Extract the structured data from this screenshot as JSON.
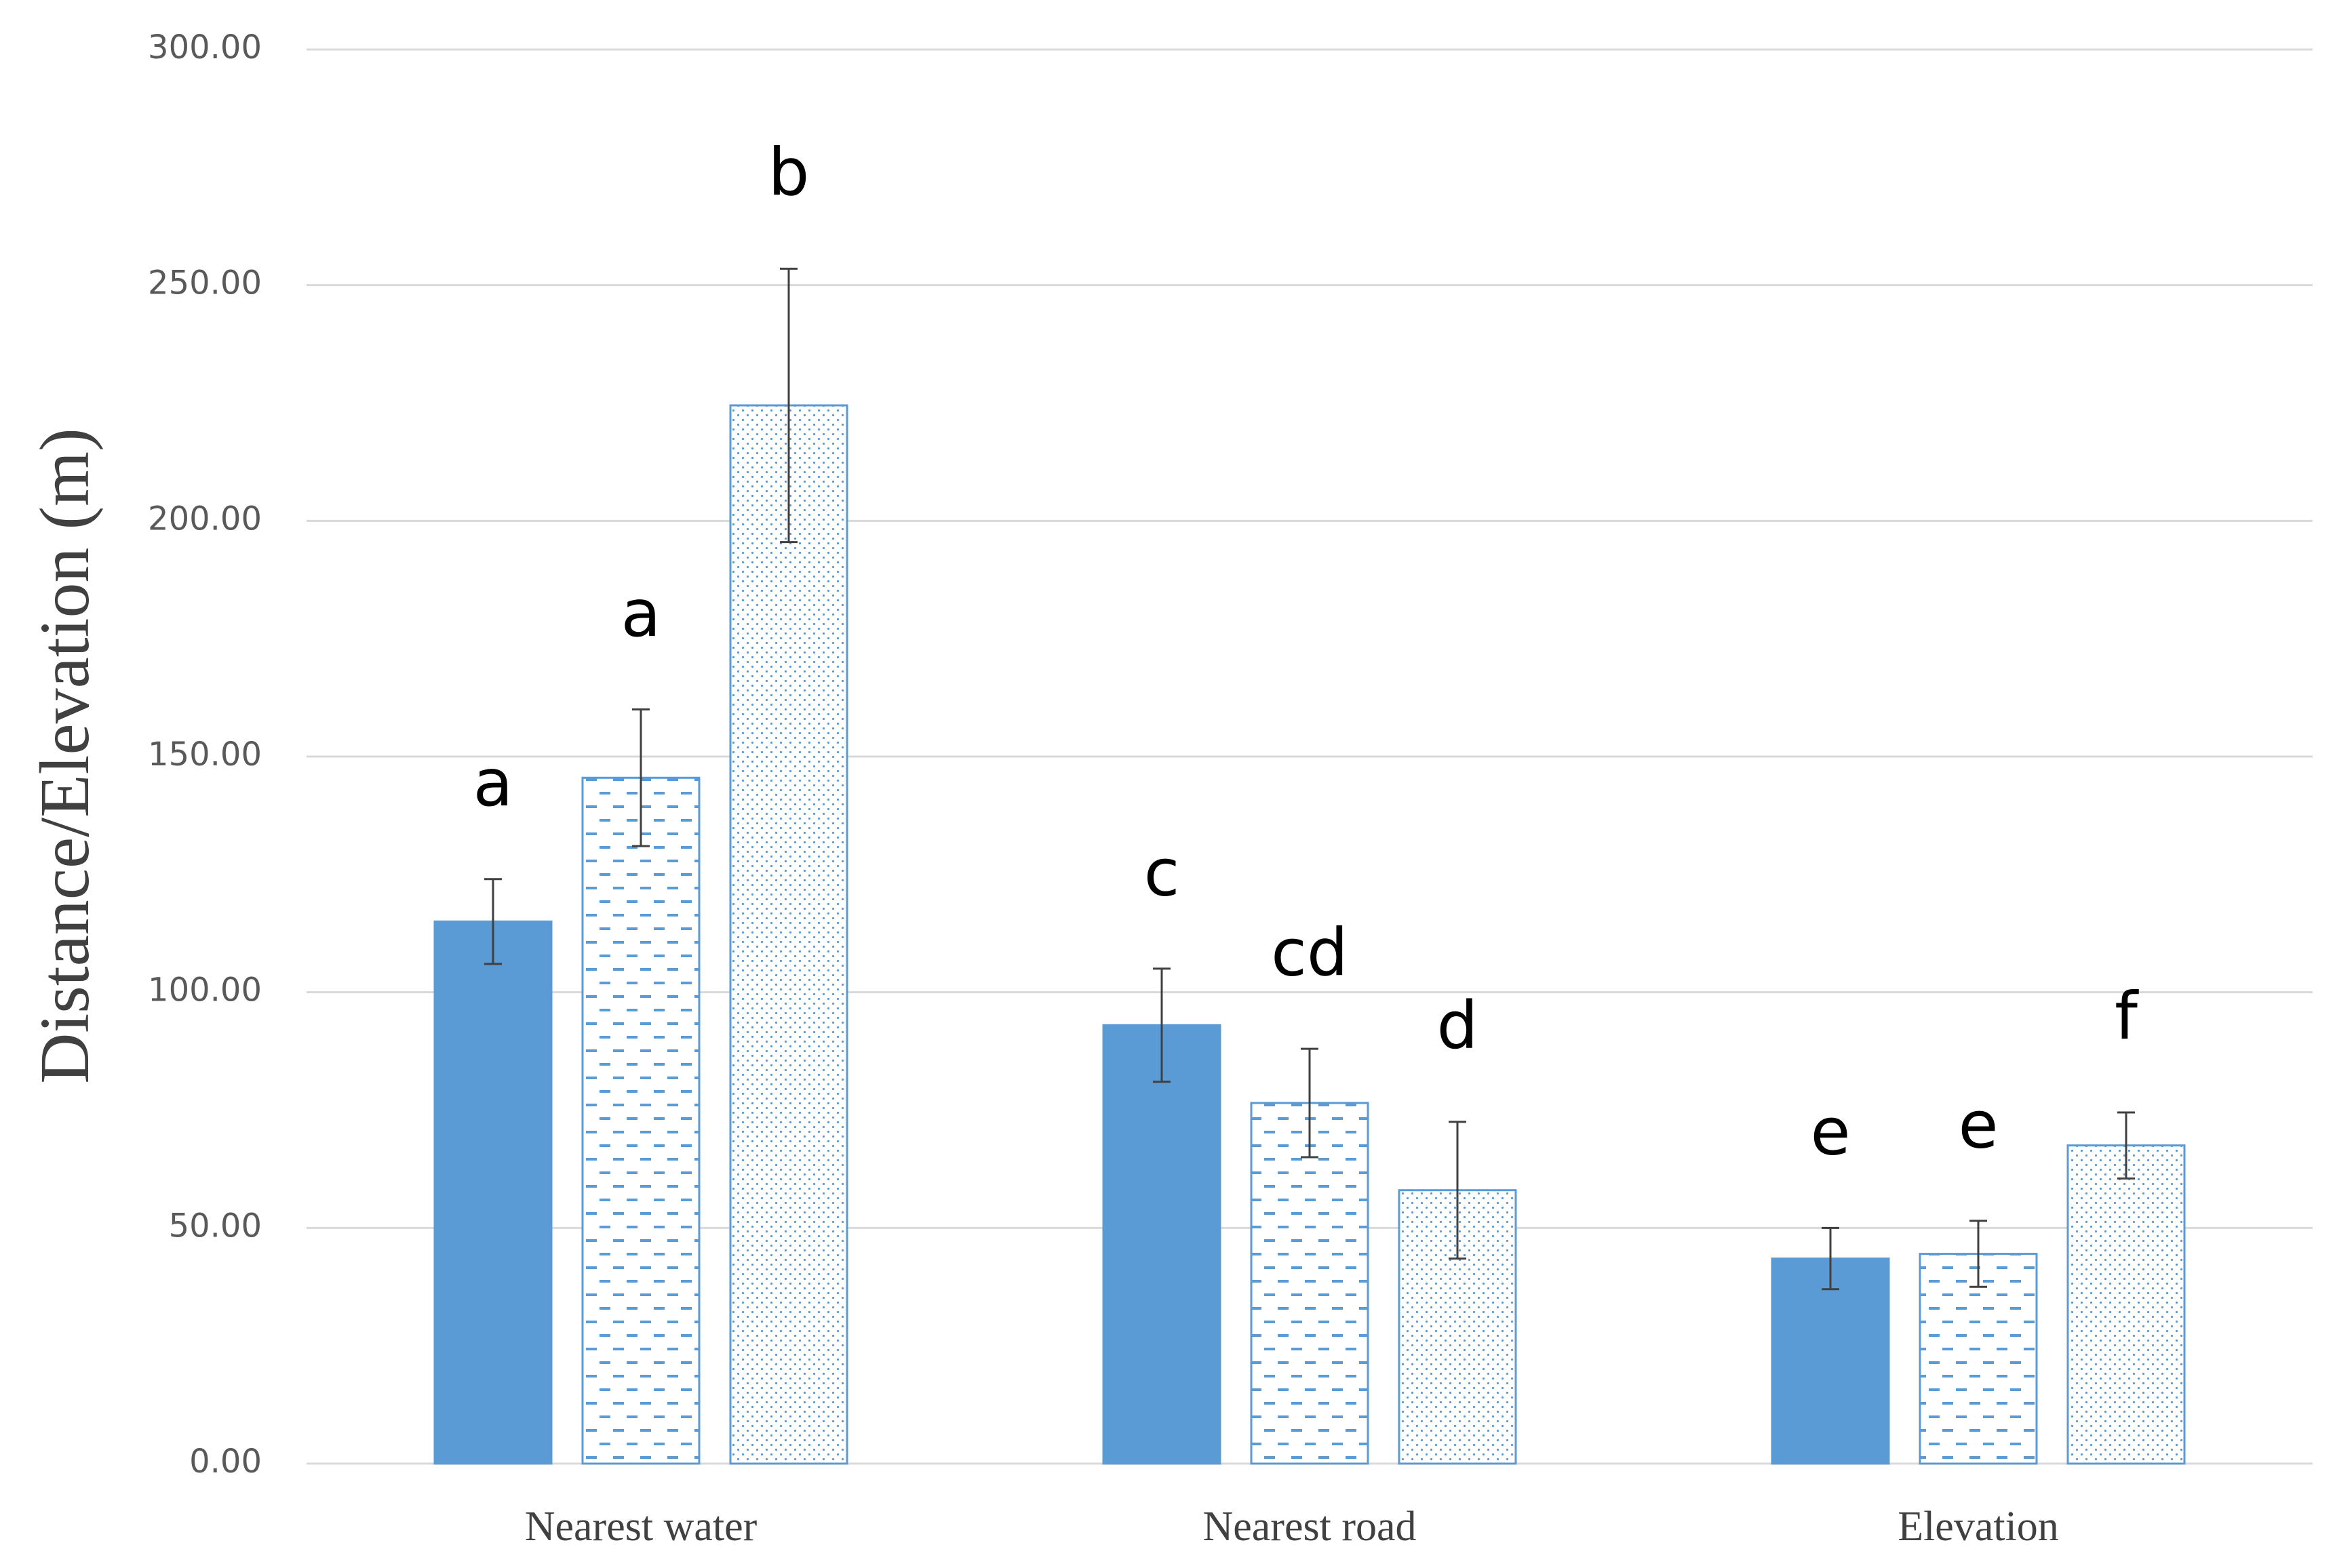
{
  "chart_data": {
    "type": "bar",
    "y_label": "Distance/Elevation (m)",
    "categories": [
      "Nearest water",
      "Nearest road",
      "Elevation"
    ],
    "series": [
      {
        "color": "#5b9bd5",
        "pattern": "solid",
        "values": [
          115,
          93,
          43.5
        ],
        "errors": [
          9,
          12,
          6.5
        ],
        "annotations": [
          "a",
          "c",
          "e"
        ]
      },
      {
        "color": "#5b9bd5",
        "pattern": "dashes",
        "values": [
          145.5,
          76.5,
          44.5
        ],
        "errors": [
          14.5,
          11.5,
          7
        ],
        "annotations": [
          "a",
          "cd",
          "e"
        ]
      },
      {
        "color": "#5b9bd5",
        "pattern": "dots",
        "values": [
          224.5,
          58,
          67.5
        ],
        "errors": [
          29,
          14.5,
          7
        ],
        "annotations": [
          "b",
          "d",
          "f"
        ]
      }
    ],
    "ylim": [
      0,
      300
    ],
    "yticks": [
      {
        "value": 0,
        "label": "0.00"
      },
      {
        "value": 50,
        "label": "50.00"
      },
      {
        "value": 100,
        "label": "100.00"
      },
      {
        "value": 150,
        "label": "150.00"
      },
      {
        "value": 200,
        "label": "200.00"
      },
      {
        "value": 250,
        "label": "250.00"
      },
      {
        "value": 300,
        "label": "300.00"
      }
    ],
    "grid": true
  }
}
